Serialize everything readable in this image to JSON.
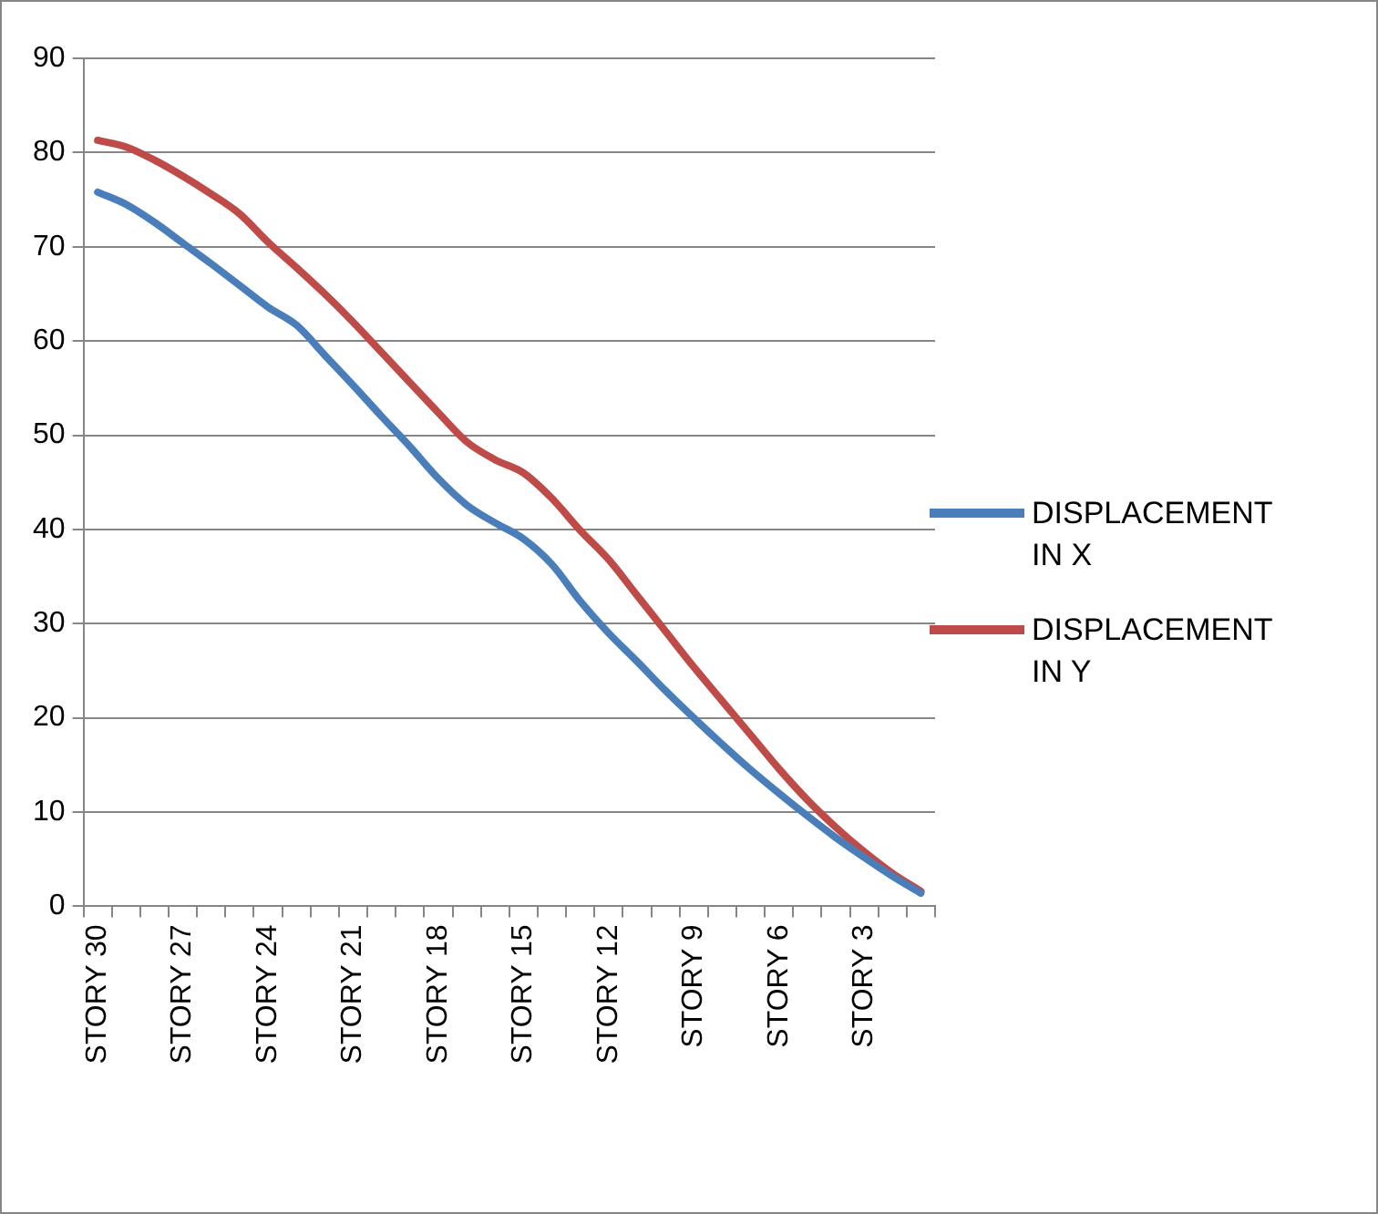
{
  "chart_data": {
    "type": "line",
    "categories": [
      "STORY 30",
      null,
      null,
      "STORY 27",
      null,
      null,
      "STORY 24",
      null,
      null,
      "STORY 21",
      null,
      null,
      "STORY 18",
      null,
      null,
      "STORY 15",
      null,
      null,
      "STORY 12",
      null,
      null,
      "STORY 9",
      null,
      null,
      "STORY 6",
      null,
      null,
      "STORY 3",
      null,
      null
    ],
    "series": [
      {
        "name": "DISPLACEMENT IN X",
        "color": "#4a7ebb",
        "values": [
          75.8,
          74.5,
          72.6,
          70.4,
          68.2,
          65.9,
          63.6,
          61.7,
          58.5,
          55.3,
          52.0,
          48.8,
          45.4,
          42.6,
          40.7,
          39.0,
          36.3,
          32.4,
          29.0,
          26.0,
          22.9,
          20.0,
          17.2,
          14.5,
          12.0,
          9.6,
          7.3,
          5.2,
          3.2,
          1.4
        ]
      },
      {
        "name": "DISPLACEMENT IN Y",
        "color": "#be4b48",
        "values": [
          81.3,
          80.6,
          79.2,
          77.5,
          75.6,
          73.5,
          70.5,
          67.8,
          65.0,
          62.0,
          58.8,
          55.6,
          52.4,
          49.3,
          47.4,
          46.0,
          43.3,
          39.9,
          36.8,
          33.0,
          29.2,
          25.4,
          21.8,
          18.2,
          14.6,
          11.3,
          8.4,
          5.8,
          3.5,
          1.6
        ]
      }
    ],
    "ylim": [
      0,
      90
    ],
    "yticks": [
      0,
      10,
      20,
      30,
      40,
      50,
      60,
      70,
      80,
      90
    ],
    "grid": "y",
    "legend": "right",
    "marker": "none",
    "line_style": "solid"
  }
}
